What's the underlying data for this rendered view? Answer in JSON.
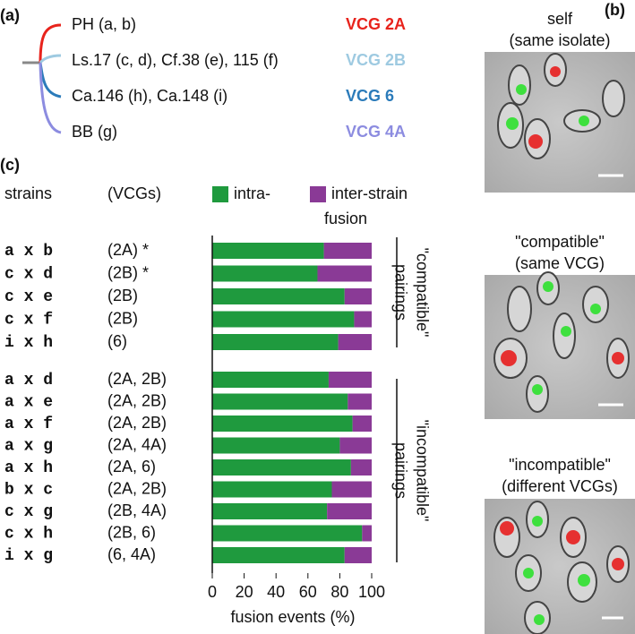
{
  "panel_a": {
    "label": "(a)",
    "entries": [
      {
        "text": "PH (a, b)",
        "vcg": "VCG 2A",
        "color": "#e8231c"
      },
      {
        "text": "Ls.17 (c, d), Cf.38 (e), 115 (f)",
        "vcg": "VCG 2B",
        "color": "#9ecae1"
      },
      {
        "text": "Ca.146 (h), Ca.148 (i)",
        "vcg": "VCG 6",
        "color": "#2b7bba"
      },
      {
        "text": "BB (g)",
        "vcg": "VCG 4A",
        "color": "#8c8ce0"
      }
    ]
  },
  "panel_b": {
    "label": "(b)",
    "images": [
      {
        "title": [
          "self",
          "(same isolate)"
        ]
      },
      {
        "title": [
          "\"compatible\"",
          "(same VCG)"
        ]
      },
      {
        "title": [
          "\"incompatible\"",
          "(different VCGs)"
        ]
      }
    ]
  },
  "chart_data": {
    "type": "bar",
    "orientation": "horizontal",
    "stacked": true,
    "panel_label": "(c)",
    "headers": [
      "strains",
      "(VCGs)"
    ],
    "legend_title": "fusion",
    "categories": [
      "a x b",
      "c x d",
      "c x e",
      "c x f",
      "i x h",
      "a x d",
      "a x e",
      "a x f",
      "a x g",
      "a x h",
      "b x c",
      "c x g",
      "c x h",
      "i x g"
    ],
    "vcgs": [
      "(2A) *",
      "(2B) *",
      "(2B)",
      "(2B)",
      "(6)",
      "(2A, 2B)",
      "(2A, 2B)",
      "(2A, 2B)",
      "(2A, 4A)",
      "(2A, 6)",
      "(2A, 2B)",
      "(2B, 4A)",
      "(2B, 6)",
      "(6, 4A)"
    ],
    "series": [
      {
        "name": "intra-",
        "color": "#1f9a3e",
        "values": [
          70,
          66,
          83,
          89,
          79,
          73,
          85,
          88,
          80,
          87,
          75,
          72,
          94,
          83
        ]
      },
      {
        "name": "inter-strain",
        "color": "#8a3a96",
        "values": [
          30,
          34,
          17,
          11,
          21,
          27,
          15,
          12,
          20,
          13,
          25,
          28,
          6,
          17
        ]
      }
    ],
    "group_labels": [
      [
        "\"compatible\"",
        "pairings"
      ],
      [
        "\"incompatible\"",
        "pairings"
      ]
    ],
    "xlim": [
      0,
      100
    ],
    "xticks": [
      0,
      20,
      40,
      60,
      80,
      100
    ],
    "xlabel": "fusion events (%)"
  }
}
